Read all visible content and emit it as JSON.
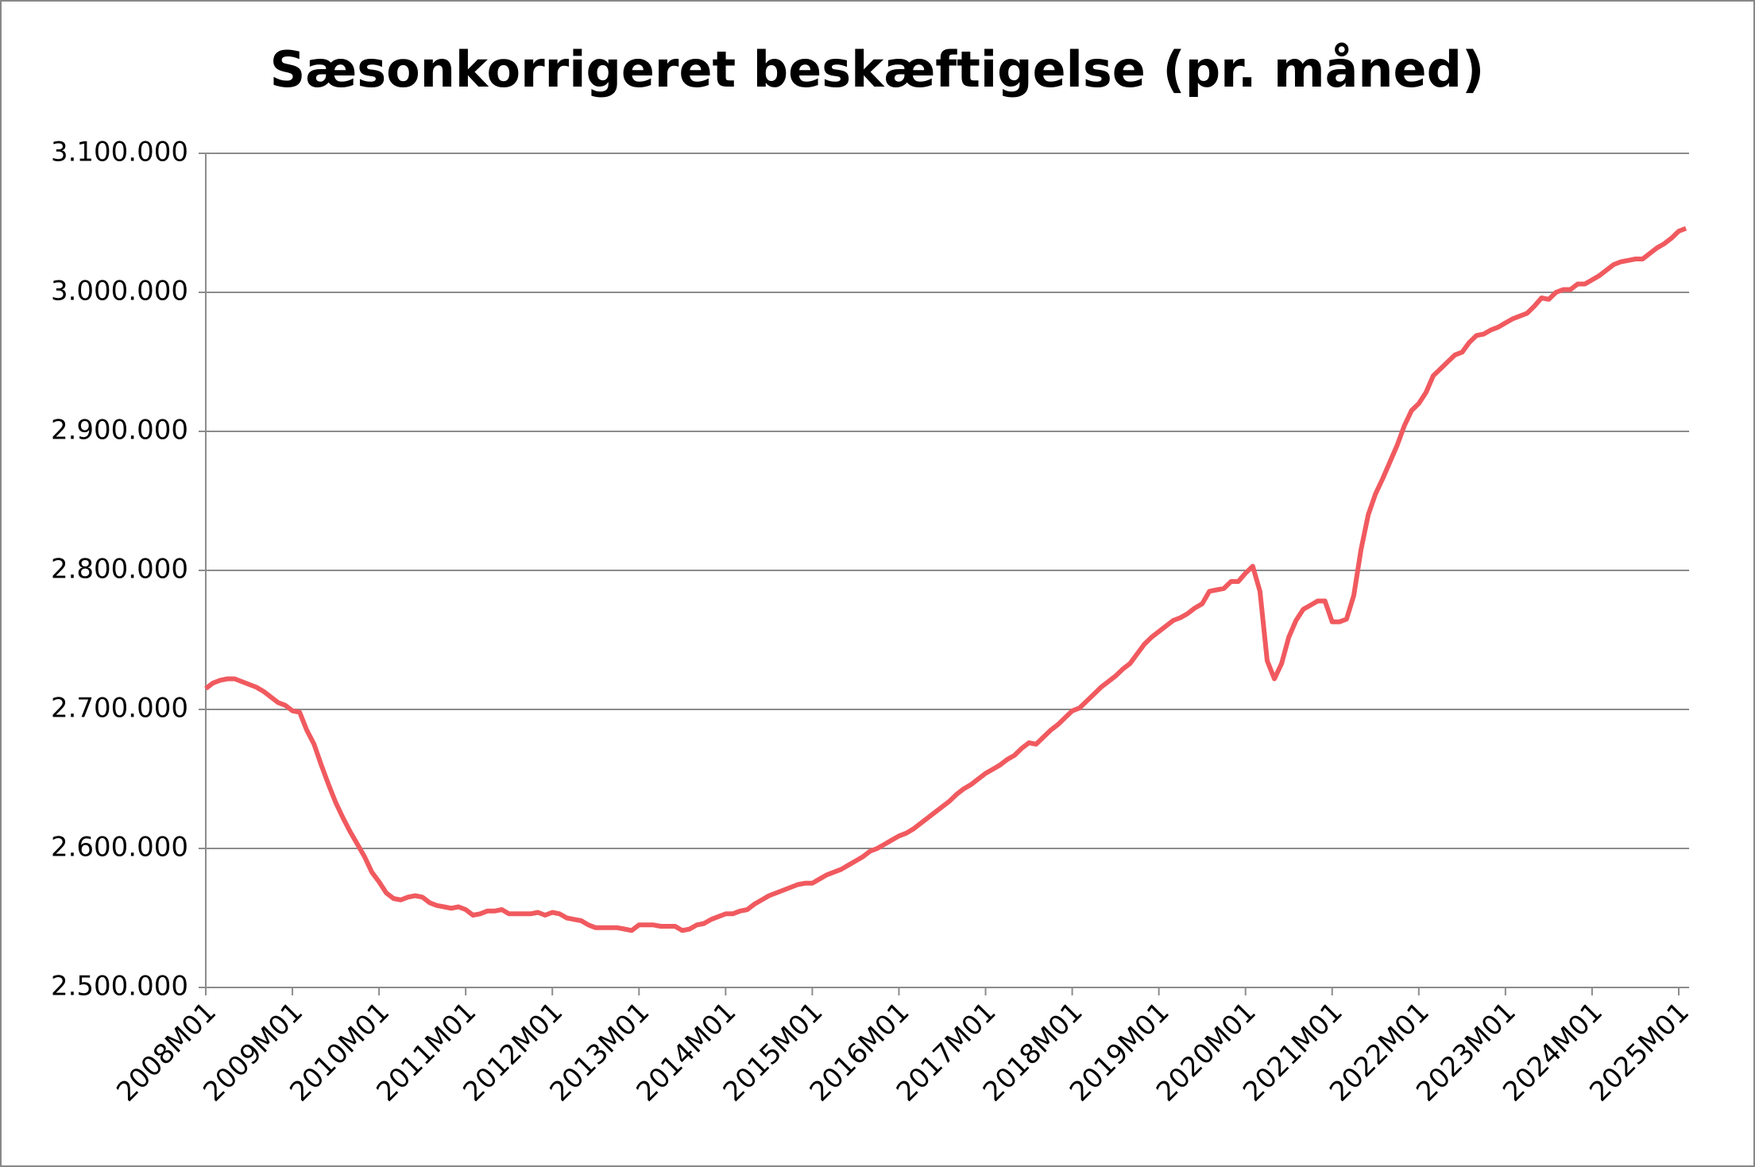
{
  "chart_data": {
    "type": "line",
    "title": "Sæsonkorrigeret beskæftigelse (pr. måned)",
    "categories": [
      "2008M01",
      null,
      null,
      null,
      null,
      null,
      null,
      null,
      null,
      null,
      null,
      null,
      "2009M01",
      null,
      null,
      null,
      null,
      null,
      null,
      null,
      null,
      null,
      null,
      null,
      "2010M01",
      null,
      null,
      null,
      null,
      null,
      null,
      null,
      null,
      null,
      null,
      null,
      "2011M01",
      null,
      null,
      null,
      null,
      null,
      null,
      null,
      null,
      null,
      null,
      null,
      "2012M01",
      null,
      null,
      null,
      null,
      null,
      null,
      null,
      null,
      null,
      null,
      null,
      "2013M01",
      null,
      null,
      null,
      null,
      null,
      null,
      null,
      null,
      null,
      null,
      null,
      "2014M01",
      null,
      null,
      null,
      null,
      null,
      null,
      null,
      null,
      null,
      null,
      null,
      "2015M01",
      null,
      null,
      null,
      null,
      null,
      null,
      null,
      null,
      null,
      null,
      null,
      "2016M01",
      null,
      null,
      null,
      null,
      null,
      null,
      null,
      null,
      null,
      null,
      null,
      "2017M01",
      null,
      null,
      null,
      null,
      null,
      null,
      null,
      null,
      null,
      null,
      null,
      "2018M01",
      null,
      null,
      null,
      null,
      null,
      null,
      null,
      null,
      null,
      null,
      null,
      "2019M01",
      null,
      null,
      null,
      null,
      null,
      null,
      null,
      null,
      null,
      null,
      null,
      "2020M01",
      null,
      null,
      null,
      null,
      null,
      null,
      null,
      null,
      null,
      null,
      null,
      "2021M01",
      null,
      null,
      null,
      null,
      null,
      null,
      null,
      null,
      null,
      null,
      null,
      "2022M01",
      null,
      null,
      null,
      null,
      null,
      null,
      null,
      null,
      null,
      null,
      null,
      "2023M01",
      null,
      null,
      null,
      null,
      null,
      null,
      null,
      null,
      null,
      null,
      null,
      "2024M01",
      null,
      null,
      null,
      null,
      null,
      null,
      null,
      null,
      null,
      null,
      null,
      "2025M01",
      null
    ],
    "values": [
      2715000,
      2719000,
      2721000,
      2722000,
      2722000,
      2720000,
      2718000,
      2716000,
      2713000,
      2709000,
      2705000,
      2703000,
      2699000,
      2698000,
      2685000,
      2675000,
      2660000,
      2646000,
      2633000,
      2622000,
      2612000,
      2603000,
      2594000,
      2583000,
      2576000,
      2568000,
      2564000,
      2563000,
      2565000,
      2566000,
      2565000,
      2561000,
      2559000,
      2558000,
      2557000,
      2558000,
      2556000,
      2552000,
      2553000,
      2555000,
      2555000,
      2556000,
      2553000,
      2553000,
      2553000,
      2553000,
      2554000,
      2552000,
      2554000,
      2553000,
      2550000,
      2549000,
      2548000,
      2545000,
      2543000,
      2543000,
      2543000,
      2543000,
      2542000,
      2541000,
      2545000,
      2545000,
      2545000,
      2544000,
      2544000,
      2544000,
      2541000,
      2542000,
      2545000,
      2546000,
      2549000,
      2551000,
      2553000,
      2553000,
      2555000,
      2556000,
      2560000,
      2563000,
      2566000,
      2568000,
      2570000,
      2572000,
      2574000,
      2575000,
      2575000,
      2578000,
      2581000,
      2583000,
      2585000,
      2588000,
      2591000,
      2594000,
      2598000,
      2600000,
      2603000,
      2606000,
      2609000,
      2611000,
      2614000,
      2618000,
      2622000,
      2626000,
      2630000,
      2634000,
      2639000,
      2643000,
      2646000,
      2650000,
      2654000,
      2657000,
      2660000,
      2664000,
      2667000,
      2672000,
      2676000,
      2675000,
      2680000,
      2685000,
      2689000,
      2694000,
      2699000,
      2701000,
      2706000,
      2711000,
      2716000,
      2720000,
      2724000,
      2729000,
      2733000,
      2740000,
      2747000,
      2752000,
      2756000,
      2760000,
      2764000,
      2766000,
      2769000,
      2773000,
      2776000,
      2785000,
      2786000,
      2787000,
      2792000,
      2792000,
      2798000,
      2803000,
      2785000,
      2735000,
      2722000,
      2733000,
      2752000,
      2764000,
      2772000,
      2775000,
      2778000,
      2778000,
      2763000,
      2763000,
      2765000,
      2782000,
      2815000,
      2840000,
      2855000,
      2866000,
      2878000,
      2890000,
      2904000,
      2915000,
      2920000,
      2928000,
      2940000,
      2945000,
      2950000,
      2955000,
      2957000,
      2964000,
      2969000,
      2970000,
      2973000,
      2975000,
      2978000,
      2981000,
      2983000,
      2985000,
      2990000,
      2996000,
      2995000,
      3000000,
      3002000,
      3002000,
      3006000,
      3006000,
      3009000,
      3012000,
      3016000,
      3020000,
      3022000,
      3023000,
      3024000,
      3024000,
      3028000,
      3032000,
      3035000,
      3039000,
      3044000,
      3046000
    ],
    "color": "#f05a5f",
    "ylim": [
      2500000,
      3100000
    ],
    "yticks": [
      {
        "value": 2500000,
        "label": "2.500.000"
      },
      {
        "value": 2600000,
        "label": "2.600.000"
      },
      {
        "value": 2700000,
        "label": "2.700.000"
      },
      {
        "value": 2800000,
        "label": "2.800.000"
      },
      {
        "value": 2900000,
        "label": "2.900.000"
      },
      {
        "value": 3000000,
        "label": "3.000.000"
      },
      {
        "value": 3100000,
        "label": "3.100.000"
      }
    ],
    "grid": true
  }
}
